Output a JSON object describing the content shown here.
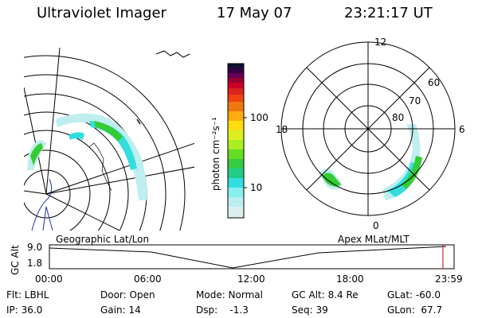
{
  "header": {
    "instrument": "Ultraviolet Imager",
    "date": "17 May 07",
    "time": "23:21:17 UT"
  },
  "colorbar": {
    "label": "photon cm⁻²s⁻¹",
    "ticks": [
      "100",
      "10"
    ]
  },
  "polar_plot": {
    "mlt_labels": {
      "top": "12",
      "left": "18",
      "right": "6",
      "bottom": "0"
    },
    "lat_labels": [
      "60",
      "70",
      "80"
    ]
  },
  "timeline": {
    "left_label": "Geographic Lat/Lon",
    "right_label": "Apex MLat/MLT",
    "y_axis_title": "GC Alt",
    "y_ticks": [
      "9.0",
      "1.8"
    ],
    "x_ticks": [
      "00:00",
      "06:00",
      "12:00",
      "18:00",
      "23:59"
    ]
  },
  "status": {
    "flt": "Flt: LBHL",
    "door": "Door: Open",
    "mode": "Mode: Normal",
    "gc_alt": "GC Alt: 8.4 Re",
    "glat": "GLat: -60.0",
    "ip": "IP: 36.0",
    "gain": "Gain: 14",
    "dsp": "Dsp:    -1.3",
    "seq": "Seq: 39",
    "glon": "GLon:  67.7"
  },
  "colors": {
    "aurora_green": "#33cc33",
    "aurora_cyan": "#33dddd",
    "aurora_light": "#bfeeee",
    "marker": "#cc0000"
  }
}
